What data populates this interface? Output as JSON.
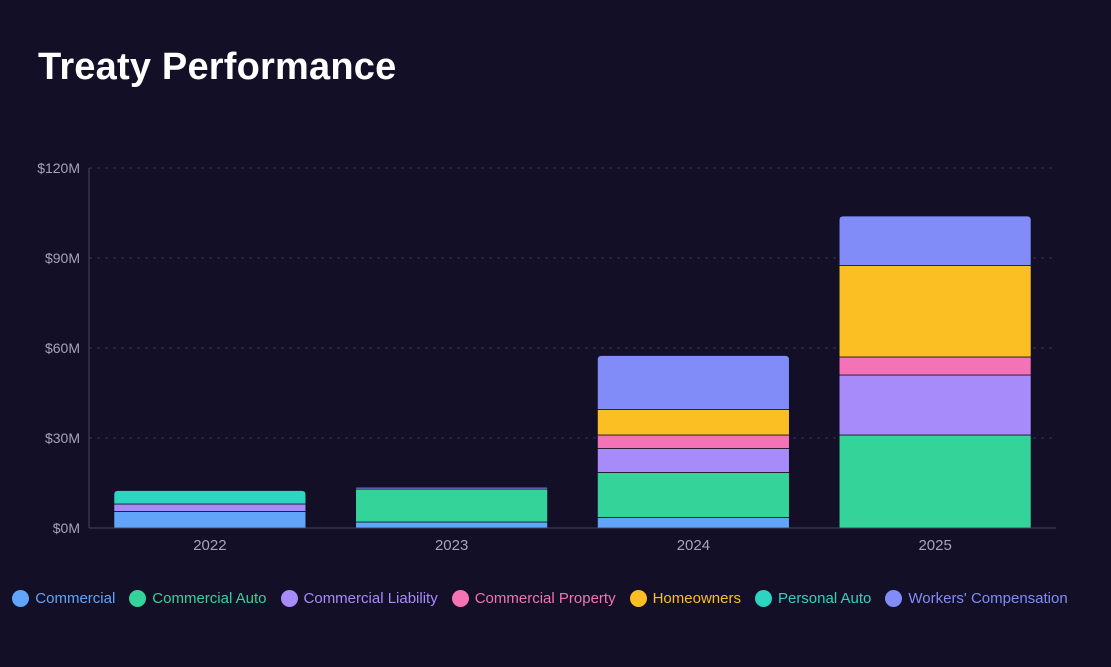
{
  "title": "Treaty Performance",
  "chart_data": {
    "type": "bar",
    "stacked": true,
    "title": "Treaty Performance",
    "xlabel": "",
    "ylabel": "",
    "ylim": [
      0,
      120
    ],
    "yticks": [
      0,
      30,
      60,
      90,
      120
    ],
    "ytick_labels": [
      "$0M",
      "$30M",
      "$60M",
      "$90M",
      "$120M"
    ],
    "categories": [
      "2022",
      "2023",
      "2024",
      "2025"
    ],
    "grid": true,
    "legend_position": "bottom",
    "series": [
      {
        "name": "Commercial",
        "color": "#60a5fa",
        "values": [
          5.5,
          2.0,
          3.5,
          0
        ]
      },
      {
        "name": "Commercial Auto",
        "color": "#34d399",
        "values": [
          0,
          11.0,
          15.0,
          31.0
        ]
      },
      {
        "name": "Commercial Liability",
        "color": "#a78bfa",
        "values": [
          2.5,
          0,
          8.0,
          20.0
        ]
      },
      {
        "name": "Commercial Property",
        "color": "#f472b6",
        "values": [
          0,
          0,
          4.5,
          6.0
        ]
      },
      {
        "name": "Homeowners",
        "color": "#fbbf24",
        "values": [
          0,
          0,
          8.5,
          30.5
        ]
      },
      {
        "name": "Personal Auto",
        "color": "#2dd4bf",
        "values": [
          4.5,
          0,
          0,
          0
        ]
      },
      {
        "name": "Workers' Compensation",
        "color": "#818cf8",
        "values": [
          0,
          0.6,
          18.0,
          16.5
        ]
      }
    ]
  }
}
